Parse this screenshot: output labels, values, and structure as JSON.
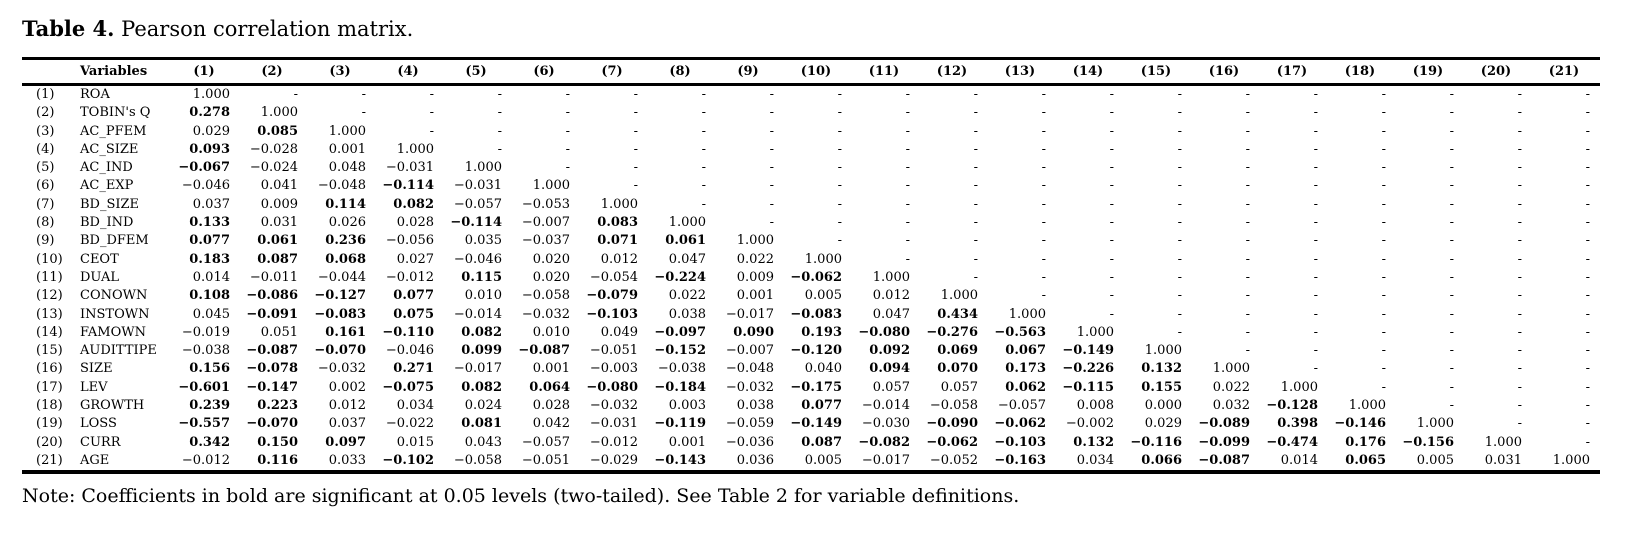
{
  "title": {
    "label": "Table 4.",
    "text": " Pearson correlation matrix."
  },
  "note": "Note: Coefficients in bold are significant at 0.05 levels (two-tailed). See Table 2 for variable definitions.",
  "table": {
    "bold_marker": "*",
    "empty_cell": "-",
    "corner_header": "Variables",
    "column_headers": [
      "(1)",
      "(2)",
      "(3)",
      "(4)",
      "(5)",
      "(6)",
      "(7)",
      "(8)",
      "(9)",
      "(10)",
      "(11)",
      "(12)",
      "(13)",
      "(14)",
      "(15)",
      "(16)",
      "(17)",
      "(18)",
      "(19)",
      "(20)",
      "(21)"
    ],
    "rows": [
      {
        "id": "(1)",
        "name": "ROA",
        "values": [
          "1.000"
        ]
      },
      {
        "id": "(2)",
        "name": "TOBIN's Q",
        "values": [
          "*0.278",
          "1.000"
        ]
      },
      {
        "id": "(3)",
        "name": "AC_PFEM",
        "values": [
          "0.029",
          "*0.085",
          "1.000"
        ]
      },
      {
        "id": "(4)",
        "name": "AC_SIZE",
        "values": [
          "*0.093",
          "−0.028",
          "0.001",
          "1.000"
        ]
      },
      {
        "id": "(5)",
        "name": "AC_IND",
        "values": [
          "*−0.067",
          "−0.024",
          "0.048",
          "−0.031",
          "1.000"
        ]
      },
      {
        "id": "(6)",
        "name": "AC_EXP",
        "values": [
          "−0.046",
          "0.041",
          "−0.048",
          "*−0.114",
          "−0.031",
          "1.000"
        ]
      },
      {
        "id": "(7)",
        "name": "BD_SIZE",
        "values": [
          "0.037",
          "0.009",
          "*0.114",
          "*0.082",
          "−0.057",
          "−0.053",
          "1.000"
        ]
      },
      {
        "id": "(8)",
        "name": "BD_IND",
        "values": [
          "*0.133",
          "0.031",
          "0.026",
          "0.028",
          "*−0.114",
          "−0.007",
          "*0.083",
          "1.000"
        ]
      },
      {
        "id": "(9)",
        "name": "BD_DFEM",
        "values": [
          "*0.077",
          "*0.061",
          "*0.236",
          "−0.056",
          "0.035",
          "−0.037",
          "*0.071",
          "*0.061",
          "1.000"
        ]
      },
      {
        "id": "(10)",
        "name": "CEOT",
        "values": [
          "*0.183",
          "*0.087",
          "*0.068",
          "0.027",
          "−0.046",
          "0.020",
          "0.012",
          "0.047",
          "0.022",
          "1.000"
        ]
      },
      {
        "id": "(11)",
        "name": "DUAL",
        "values": [
          "0.014",
          "−0.011",
          "−0.044",
          "−0.012",
          "*0.115",
          "0.020",
          "−0.054",
          "*−0.224",
          "0.009",
          "*−0.062",
          "1.000"
        ]
      },
      {
        "id": "(12)",
        "name": "CONOWN",
        "values": [
          "*0.108",
          "*−0.086",
          "*−0.127",
          "*0.077",
          "0.010",
          "−0.058",
          "*−0.079",
          "0.022",
          "0.001",
          "0.005",
          "0.012",
          "1.000"
        ]
      },
      {
        "id": "(13)",
        "name": "INSTOWN",
        "values": [
          "0.045",
          "*−0.091",
          "*−0.083",
          "*0.075",
          "−0.014",
          "−0.032",
          "*−0.103",
          "0.038",
          "−0.017",
          "*−0.083",
          "0.047",
          "*0.434",
          "1.000"
        ]
      },
      {
        "id": "(14)",
        "name": "FAMOWN",
        "values": [
          "−0.019",
          "0.051",
          "*0.161",
          "*−0.110",
          "*0.082",
          "0.010",
          "0.049",
          "*−0.097",
          "*0.090",
          "*0.193",
          "*−0.080",
          "*−0.276",
          "*−0.563",
          "1.000"
        ]
      },
      {
        "id": "(15)",
        "name": "AUDITTIPE",
        "values": [
          "−0.038",
          "*−0.087",
          "*−0.070",
          "−0.046",
          "*0.099",
          "*−0.087",
          "−0.051",
          "*−0.152",
          "−0.007",
          "*−0.120",
          "*0.092",
          "*0.069",
          "*0.067",
          "*−0.149",
          "1.000"
        ]
      },
      {
        "id": "(16)",
        "name": "SIZE",
        "values": [
          "*0.156",
          "*−0.078",
          "−0.032",
          "*0.271",
          "−0.017",
          "0.001",
          "−0.003",
          "−0.038",
          "−0.048",
          "0.040",
          "*0.094",
          "*0.070",
          "*0.173",
          "*−0.226",
          "*0.132",
          "1.000"
        ]
      },
      {
        "id": "(17)",
        "name": "LEV",
        "values": [
          "*−0.601",
          "*−0.147",
          "0.002",
          "*−0.075",
          "*0.082",
          "*0.064",
          "*−0.080",
          "*−0.184",
          "−0.032",
          "*−0.175",
          "0.057",
          "0.057",
          "*0.062",
          "*−0.115",
          "*0.155",
          "0.022",
          "1.000"
        ]
      },
      {
        "id": "(18)",
        "name": "GROWTH",
        "values": [
          "*0.239",
          "*0.223",
          "0.012",
          "0.034",
          "0.024",
          "0.028",
          "−0.032",
          "0.003",
          "0.038",
          "*0.077",
          "−0.014",
          "−0.058",
          "−0.057",
          "0.008",
          "0.000",
          "0.032",
          "*−0.128",
          "1.000"
        ]
      },
      {
        "id": "(19)",
        "name": "LOSS",
        "values": [
          "*−0.557",
          "*−0.070",
          "0.037",
          "−0.022",
          "*0.081",
          "0.042",
          "−0.031",
          "*−0.119",
          "−0.059",
          "*−0.149",
          "−0.030",
          "*−0.090",
          "*−0.062",
          "−0.002",
          "0.029",
          "*−0.089",
          "*0.398",
          "*−0.146",
          "1.000"
        ]
      },
      {
        "id": "(20)",
        "name": "CURR",
        "values": [
          "*0.342",
          "*0.150",
          "*0.097",
          "0.015",
          "0.043",
          "−0.057",
          "−0.012",
          "0.001",
          "−0.036",
          "*0.087",
          "*−0.082",
          "*−0.062",
          "*−0.103",
          "*0.132",
          "*−0.116",
          "*−0.099",
          "*−0.474",
          "*0.176",
          "*−0.156",
          "1.000"
        ]
      },
      {
        "id": "(21)",
        "name": "AGE",
        "values": [
          "−0.012",
          "*0.116",
          "0.033",
          "*−0.102",
          "−0.058",
          "−0.051",
          "−0.029",
          "*−0.143",
          "0.036",
          "0.005",
          "−0.017",
          "−0.052",
          "*−0.163",
          "0.034",
          "*0.066",
          "*−0.087",
          "0.014",
          "*0.065",
          "0.005",
          "0.031",
          "1.000"
        ]
      }
    ]
  }
}
